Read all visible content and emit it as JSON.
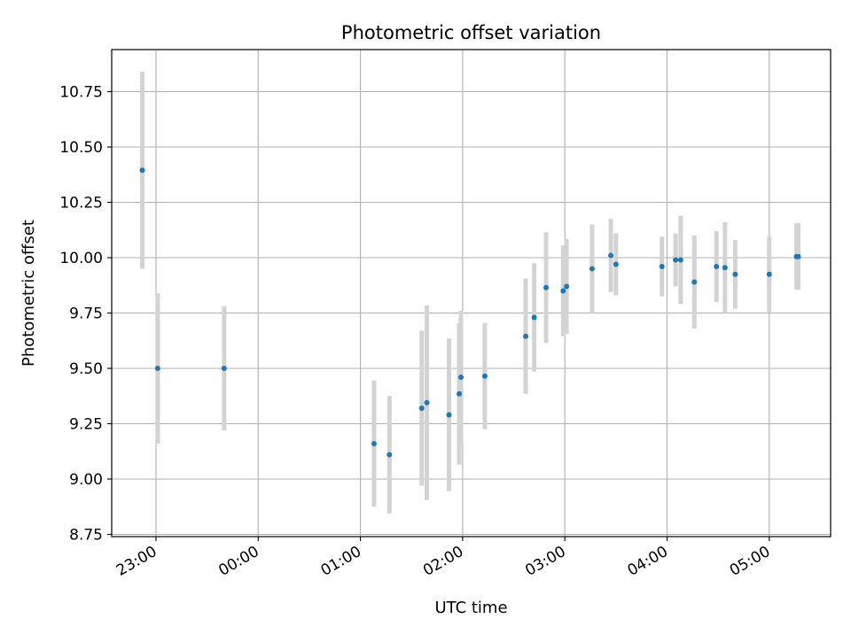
{
  "chart_data": {
    "type": "scatter",
    "title": "Photometric offset variation",
    "xlabel": "UTC time",
    "ylabel": "Photometric offset",
    "xlim": [
      "22:34",
      "05:36"
    ],
    "ylim": [
      8.74,
      10.94
    ],
    "grid": true,
    "x_ticks": [
      "23:00",
      "00:00",
      "01:00",
      "02:00",
      "03:00",
      "04:00",
      "05:00"
    ],
    "y_ticks": [
      "8.75",
      "9.00",
      "9.25",
      "9.50",
      "9.75",
      "10.00",
      "10.25",
      "10.50",
      "10.75"
    ],
    "x_tick_values": [
      -60,
      0,
      60,
      120,
      180,
      240,
      300
    ],
    "y_tick_values": [
      8.75,
      9.0,
      9.25,
      9.5,
      9.75,
      10.0,
      10.25,
      10.5,
      10.75
    ],
    "series": [
      {
        "marker_color": "#1f77b4",
        "errorbar_color": "#d3d3d3",
        "points": [
          {
            "time": "22:52",
            "y": 10.395,
            "yerr": 0.445
          },
          {
            "time": "23:01",
            "y": 9.5,
            "yerr": 0.34
          },
          {
            "time": "23:40",
            "y": 9.5,
            "yerr": 0.28
          },
          {
            "time": "01:08",
            "y": 9.16,
            "yerr": 0.285
          },
          {
            "time": "01:17",
            "y": 9.11,
            "yerr": 0.265
          },
          {
            "time": "01:36",
            "y": 9.32,
            "yerr": 0.35
          },
          {
            "time": "01:39",
            "y": 9.345,
            "yerr": 0.44
          },
          {
            "time": "01:52",
            "y": 9.29,
            "yerr": 0.345
          },
          {
            "time": "01:58",
            "y": 9.385,
            "yerr": 0.32
          },
          {
            "time": "01:59",
            "y": 9.46,
            "yerr": 0.3
          },
          {
            "time": "02:13",
            "y": 9.465,
            "yerr": 0.24
          },
          {
            "time": "02:37",
            "y": 9.645,
            "yerr": 0.26
          },
          {
            "time": "02:42",
            "y": 9.73,
            "yerr": 0.245
          },
          {
            "time": "02:49",
            "y": 9.865,
            "yerr": 0.25
          },
          {
            "time": "02:59",
            "y": 9.85,
            "yerr": 0.205
          },
          {
            "time": "03:01",
            "y": 9.87,
            "yerr": 0.215
          },
          {
            "time": "03:16",
            "y": 9.95,
            "yerr": 0.2
          },
          {
            "time": "03:27",
            "y": 10.01,
            "yerr": 0.165
          },
          {
            "time": "03:30",
            "y": 9.97,
            "yerr": 0.14
          },
          {
            "time": "03:57",
            "y": 9.96,
            "yerr": 0.135
          },
          {
            "time": "04:05",
            "y": 9.99,
            "yerr": 0.12
          },
          {
            "time": "04:08",
            "y": 9.99,
            "yerr": 0.2
          },
          {
            "time": "04:16",
            "y": 9.89,
            "yerr": 0.21
          },
          {
            "time": "04:29",
            "y": 9.96,
            "yerr": 0.16
          },
          {
            "time": "04:34",
            "y": 9.955,
            "yerr": 0.205
          },
          {
            "time": "04:40",
            "y": 9.925,
            "yerr": 0.155
          },
          {
            "time": "05:00",
            "y": 9.925,
            "yerr": 0.17
          },
          {
            "time": "05:16",
            "y": 10.005,
            "yerr": 0.15
          },
          {
            "time": "05:17",
            "y": 10.005,
            "yerr": 0.15
          }
        ]
      }
    ]
  }
}
